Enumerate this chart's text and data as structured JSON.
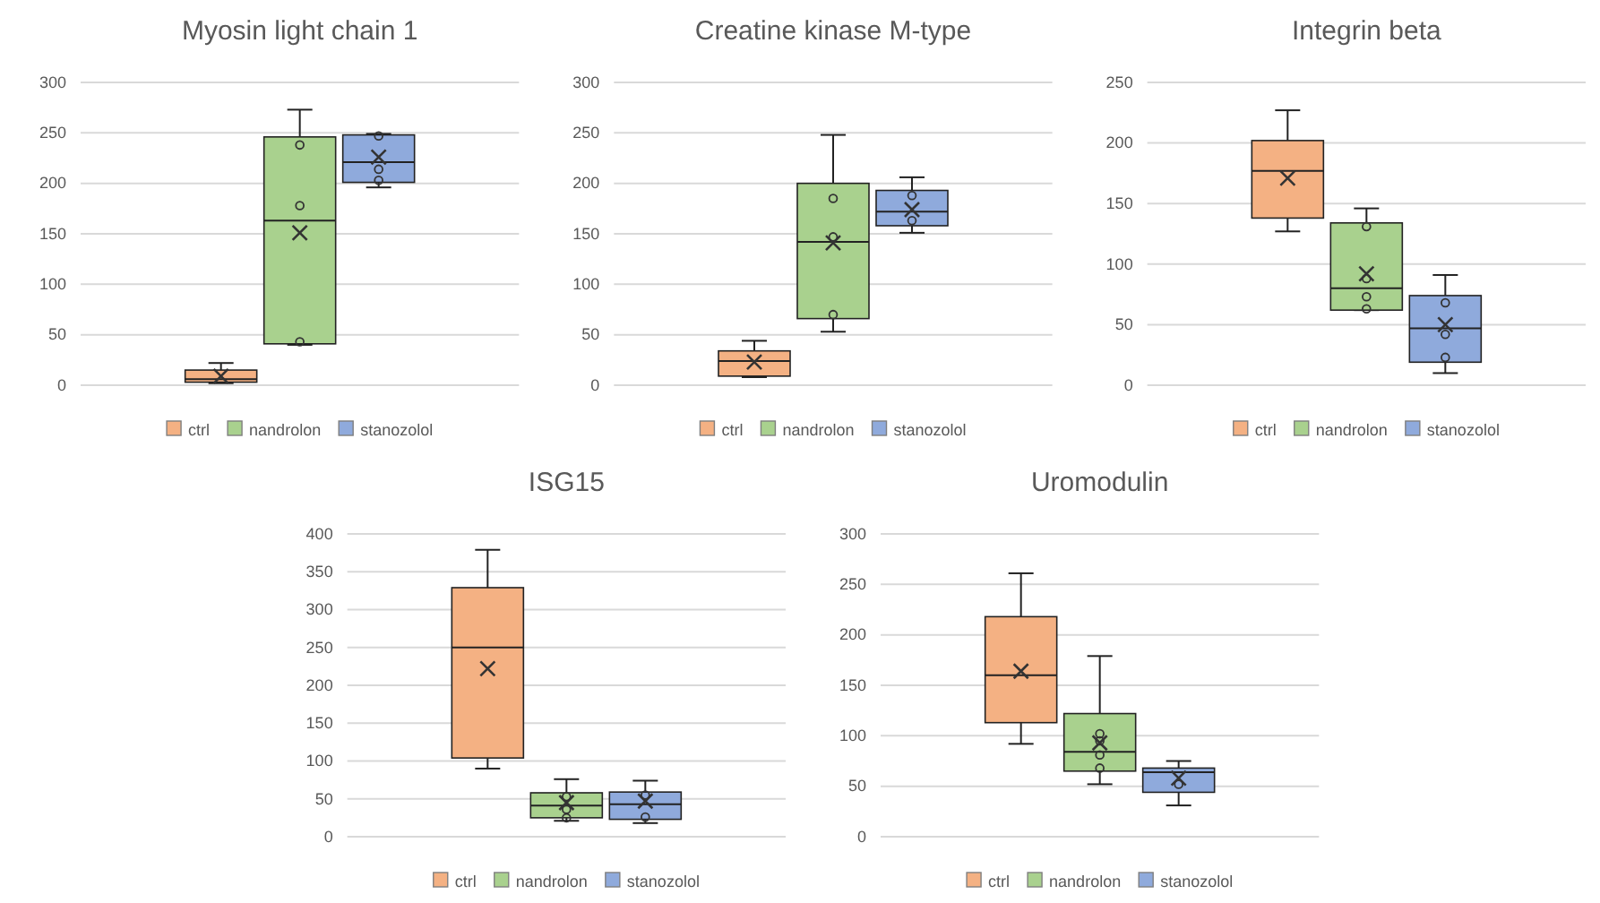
{
  "chart_data": [
    {
      "type": "box",
      "title": "Myosin light chain 1",
      "categories": [
        null
      ],
      "ylim": [
        0,
        300
      ],
      "yticks": [
        0,
        50,
        100,
        150,
        200,
        250,
        300
      ],
      "grid": "y",
      "legend": "bottom",
      "series": [
        {
          "name": "ctrl",
          "color": "#f4b183",
          "boxes": [
            {
              "low": 2,
              "q1": 3,
              "median": 6,
              "q3": 15,
              "high": 22,
              "mean": 9
            }
          ]
        },
        {
          "name": "nandrolon",
          "color": "#a9d18e",
          "boxes": [
            {
              "low": 40,
              "q1": 41,
              "median": 163,
              "q3": 246,
              "high": 273,
              "mean": 151,
              "outliers": [
                238,
                178,
                43
              ]
            }
          ]
        },
        {
          "name": "stanozolol",
          "color": "#8faadc",
          "boxes": [
            {
              "low": 196,
              "q1": 201,
              "median": 221,
              "q3": 248,
              "high": 249,
              "mean": 226,
              "outliers": [
                247,
                214,
                203
              ]
            }
          ]
        }
      ]
    },
    {
      "type": "box",
      "title": "Creatine kinase M-type",
      "categories": [
        null
      ],
      "ylim": [
        0,
        300
      ],
      "yticks": [
        0,
        50,
        100,
        150,
        200,
        250,
        300
      ],
      "grid": "y",
      "legend": "bottom",
      "series": [
        {
          "name": "ctrl",
          "color": "#f4b183",
          "boxes": [
            {
              "low": 8,
              "q1": 9,
              "median": 24,
              "q3": 34,
              "high": 44,
              "mean": 23
            }
          ]
        },
        {
          "name": "nandrolon",
          "color": "#a9d18e",
          "boxes": [
            {
              "low": 53,
              "q1": 66,
              "median": 142,
              "q3": 200,
              "high": 248,
              "mean": 141,
              "outliers": [
                185,
                147,
                70
              ]
            }
          ]
        },
        {
          "name": "stanozolol",
          "color": "#8faadc",
          "boxes": [
            {
              "low": 151,
              "q1": 158,
              "median": 172,
              "q3": 193,
              "high": 206,
              "mean": 174,
              "outliers": [
                188,
                163
              ]
            }
          ]
        }
      ]
    },
    {
      "type": "box",
      "title": "Integrin beta",
      "categories": [
        null
      ],
      "ylim": [
        0,
        250
      ],
      "yticks": [
        0,
        50,
        100,
        150,
        200,
        250
      ],
      "grid": "y",
      "legend": "bottom",
      "series": [
        {
          "name": "ctrl",
          "color": "#f4b183",
          "boxes": [
            {
              "low": 127,
              "q1": 138,
              "median": 177,
              "q3": 202,
              "high": 227,
              "mean": 171
            }
          ]
        },
        {
          "name": "nandrolon",
          "color": "#a9d18e",
          "boxes": [
            {
              "low": 62,
              "q1": 62,
              "median": 80,
              "q3": 134,
              "high": 146,
              "mean": 92,
              "outliers": [
                131,
                88,
                73,
                63
              ]
            }
          ]
        },
        {
          "name": "stanozolol",
          "color": "#8faadc",
          "boxes": [
            {
              "low": 10,
              "q1": 19,
              "median": 47,
              "q3": 74,
              "high": 91,
              "mean": 50,
              "outliers": [
                68,
                42,
                23
              ]
            }
          ]
        }
      ]
    },
    {
      "type": "box",
      "title": "ISG15",
      "categories": [
        null
      ],
      "ylim": [
        0,
        400
      ],
      "yticks": [
        0,
        50,
        100,
        150,
        200,
        250,
        300,
        350,
        400
      ],
      "grid": "y",
      "legend": "bottom",
      "series": [
        {
          "name": "ctrl",
          "color": "#f4b183",
          "boxes": [
            {
              "low": 90,
              "q1": 104,
              "median": 250,
              "q3": 329,
              "high": 379,
              "mean": 222
            }
          ]
        },
        {
          "name": "nandrolon",
          "color": "#a9d18e",
          "boxes": [
            {
              "low": 21,
              "q1": 25,
              "median": 41,
              "q3": 58,
              "high": 76,
              "mean": 45,
              "outliers": [
                53,
                36,
                25
              ]
            }
          ]
        },
        {
          "name": "stanozolol",
          "color": "#8faadc",
          "boxes": [
            {
              "low": 18,
              "q1": 23,
              "median": 43,
              "q3": 59,
              "high": 74,
              "mean": 47,
              "outliers": [
                55,
                26
              ]
            }
          ]
        }
      ]
    },
    {
      "type": "box",
      "title": "Uromodulin",
      "categories": [
        null
      ],
      "ylim": [
        0,
        300
      ],
      "yticks": [
        0,
        50,
        100,
        150,
        200,
        250,
        300
      ],
      "grid": "y",
      "legend": "bottom",
      "series": [
        {
          "name": "ctrl",
          "color": "#f4b183",
          "boxes": [
            {
              "low": 92,
              "q1": 113,
              "median": 160,
              "q3": 218,
              "high": 261,
              "mean": 164
            }
          ]
        },
        {
          "name": "nandrolon",
          "color": "#a9d18e",
          "boxes": [
            {
              "low": 52,
              "q1": 65,
              "median": 84,
              "q3": 122,
              "high": 179,
              "mean": 93,
              "outliers": [
                102,
                95,
                81,
                68
              ]
            }
          ]
        },
        {
          "name": "stanozolol",
          "color": "#8faadc",
          "boxes": [
            {
              "low": 31,
              "q1": 44,
              "median": 64,
              "q3": 68,
              "high": 75,
              "mean": 58,
              "outliers": [
                52
              ]
            }
          ]
        }
      ]
    }
  ]
}
